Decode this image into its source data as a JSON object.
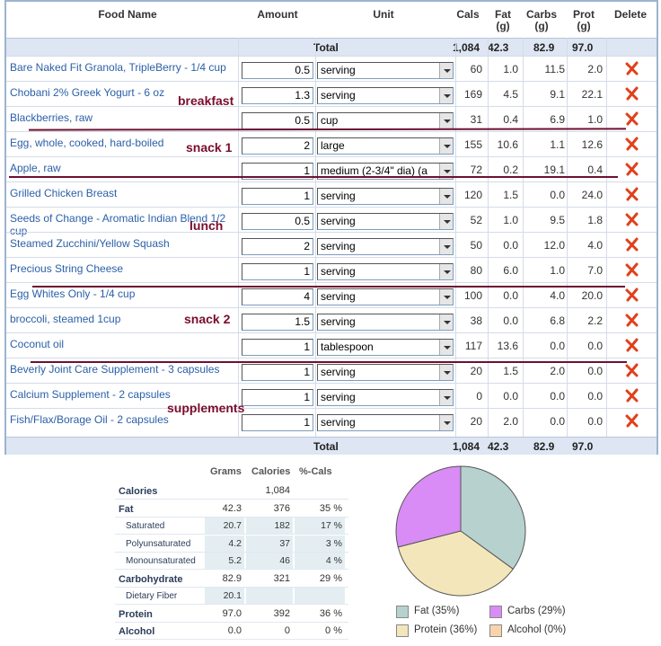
{
  "columns": {
    "food_name": "Food Name",
    "amount": "Amount",
    "unit": "Unit",
    "cals": "Cals",
    "fat": "Fat\n(g)",
    "carbs": "Carbs\n(g)",
    "prot": "Prot\n(g)",
    "delete": "Delete"
  },
  "totals": {
    "label": "Total",
    "cals": "1,084",
    "fat": "42.3",
    "carbs": "82.9",
    "prot": "97.0"
  },
  "rows": [
    {
      "name": "Bare Naked Fit Granola, TripleBerry - 1/4 cup",
      "amount": "0.5",
      "unit": "serving",
      "cals": "60",
      "fat": "1.0",
      "carbs": "11.5",
      "prot": "2.0"
    },
    {
      "name": "Chobani 2% Greek Yogurt - 6 oz",
      "amount": "1.3",
      "unit": "serving",
      "cals": "169",
      "fat": "4.5",
      "carbs": "9.1",
      "prot": "22.1"
    },
    {
      "name": "Blackberries, raw",
      "amount": "0.5",
      "unit": "cup",
      "cals": "31",
      "fat": "0.4",
      "carbs": "6.9",
      "prot": "1.0"
    },
    {
      "name": "Egg, whole, cooked, hard-boiled",
      "amount": "2",
      "unit": "large",
      "cals": "155",
      "fat": "10.6",
      "carbs": "1.1",
      "prot": "12.6"
    },
    {
      "name": "Apple, raw",
      "amount": "1",
      "unit": "medium (2-3/4\" dia) (a",
      "cals": "72",
      "fat": "0.2",
      "carbs": "19.1",
      "prot": "0.4"
    },
    {
      "name": "Grilled Chicken Breast",
      "amount": "1",
      "unit": "serving",
      "cals": "120",
      "fat": "1.5",
      "carbs": "0.0",
      "prot": "24.0"
    },
    {
      "name": "Seeds of Change - Aromatic Indian Blend 1/2 cup",
      "amount": "0.5",
      "unit": "serving",
      "cals": "52",
      "fat": "1.0",
      "carbs": "9.5",
      "prot": "1.8"
    },
    {
      "name": "Steamed Zucchini/Yellow Squash",
      "amount": "2",
      "unit": "serving",
      "cals": "50",
      "fat": "0.0",
      "carbs": "12.0",
      "prot": "4.0"
    },
    {
      "name": "Precious String Cheese",
      "amount": "1",
      "unit": "serving",
      "cals": "80",
      "fat": "6.0",
      "carbs": "1.0",
      "prot": "7.0"
    },
    {
      "name": "Egg Whites Only - 1/4 cup",
      "amount": "4",
      "unit": "serving",
      "cals": "100",
      "fat": "0.0",
      "carbs": "4.0",
      "prot": "20.0"
    },
    {
      "name": "broccoli, steamed 1cup",
      "amount": "1.5",
      "unit": "serving",
      "cals": "38",
      "fat": "0.0",
      "carbs": "6.8",
      "prot": "2.2"
    },
    {
      "name": "Coconut oil",
      "amount": "1",
      "unit": "tablespoon",
      "cals": "117",
      "fat": "13.6",
      "carbs": "0.0",
      "prot": "0.0"
    },
    {
      "name": "Beverly Joint Care Supplement - 3 capsules",
      "amount": "1",
      "unit": "serving",
      "cals": "20",
      "fat": "1.5",
      "carbs": "2.0",
      "prot": "0.0"
    },
    {
      "name": "Calcium Supplement - 2 capsules",
      "amount": "1",
      "unit": "serving",
      "cals": "0",
      "fat": "0.0",
      "carbs": "0.0",
      "prot": "0.0"
    },
    {
      "name": "Fish/Flax/Borage Oil - 2 capsules",
      "amount": "1",
      "unit": "serving",
      "cals": "20",
      "fat": "2.0",
      "carbs": "0.0",
      "prot": "0.0"
    }
  ],
  "annotations": {
    "breakfast": "breakfast",
    "snack1": "snack 1",
    "lunch": "lunch",
    "snack2": "snack 2",
    "supplements": "supplements"
  },
  "summary": {
    "headers": {
      "grams": "Grams",
      "calories": "Calories",
      "pct": "%-Cals"
    },
    "rows": [
      {
        "label": "Calories",
        "grams": "",
        "calories": "1,084",
        "pct": ""
      },
      {
        "label": "Fat",
        "grams": "42.3",
        "calories": "376",
        "pct": "35 %"
      },
      {
        "label": "Saturated",
        "grams": "20.7",
        "calories": "182",
        "pct": "17 %"
      },
      {
        "label": "Polyunsaturated",
        "grams": "4.2",
        "calories": "37",
        "pct": "3 %"
      },
      {
        "label": "Monounsaturated",
        "grams": "5.2",
        "calories": "46",
        "pct": "4 %"
      },
      {
        "label": "Carbohydrate",
        "grams": "82.9",
        "calories": "321",
        "pct": "29 %"
      },
      {
        "label": "Dietary Fiber",
        "grams": "20.1",
        "calories": "",
        "pct": ""
      },
      {
        "label": "Protein",
        "grams": "97.0",
        "calories": "392",
        "pct": "36 %"
      },
      {
        "label": "Alcohol",
        "grams": "0.0",
        "calories": "0",
        "pct": "0 %"
      }
    ]
  },
  "chart_data": {
    "type": "pie",
    "slices": [
      {
        "label": "Fat (35%)",
        "value": 35,
        "color": "#b7d2ce"
      },
      {
        "label": "Carbs (29%)",
        "value": 29,
        "color": "#d98cf5"
      },
      {
        "label": "Protein (36%)",
        "value": 36,
        "color": "#f3e6bb"
      },
      {
        "label": "Alcohol (0%)",
        "value": 0,
        "color": "#f8d4ad"
      }
    ],
    "legend_placement": "bottom"
  },
  "colors": {
    "link": "#2a5fa8",
    "total_bg": "#dde6f2",
    "annotation": "#7a0d2c",
    "delete_x": "#e0401a"
  }
}
